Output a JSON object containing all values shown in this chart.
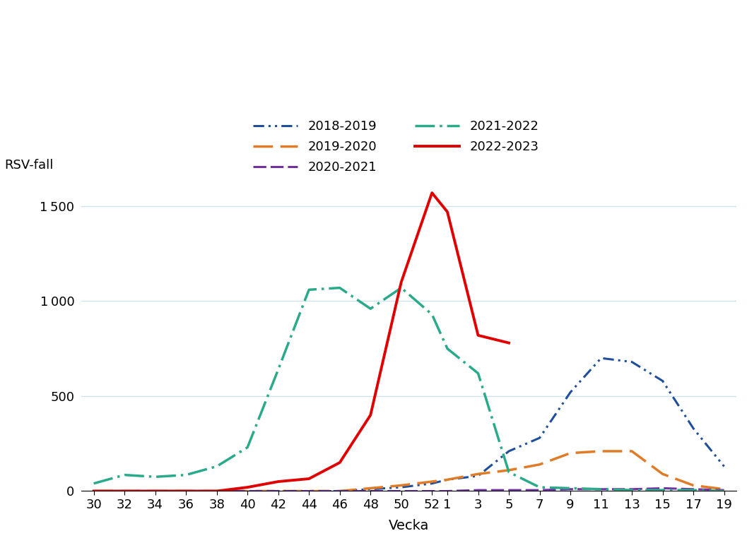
{
  "title": "",
  "ylabel": "RSV-fall",
  "xlabel": "Vecka",
  "background_color": "#ffffff",
  "grid_color": "#d0e4f0",
  "x_tick_labels": [
    "30",
    "32",
    "34",
    "36",
    "38",
    "40",
    "42",
    "44",
    "46",
    "48",
    "50",
    "52",
    "1",
    "3",
    "5",
    "7",
    "9",
    "11",
    "13",
    "15",
    "17",
    "19"
  ],
  "x_tick_positions": [
    0,
    2,
    4,
    6,
    8,
    10,
    12,
    14,
    16,
    18,
    20,
    22,
    23,
    25,
    27,
    29,
    31,
    33,
    35,
    37,
    39,
    41
  ],
  "ylim": [
    0,
    1650
  ],
  "yticks": [
    0,
    500,
    1000,
    1500
  ],
  "series": [
    {
      "label": "2018-2019",
      "color": "#1f4e9a",
      "linewidth": 2.2,
      "x": [
        0,
        2,
        4,
        6,
        8,
        10,
        12,
        14,
        16,
        18,
        20,
        22,
        23,
        25,
        27,
        29,
        31,
        33,
        35,
        37,
        39,
        41
      ],
      "y": [
        0,
        0,
        0,
        0,
        0,
        0,
        0,
        0,
        0,
        10,
        20,
        40,
        60,
        80,
        210,
        280,
        520,
        700,
        680,
        580,
        330,
        130
      ]
    },
    {
      "label": "2019-2020",
      "color": "#e07b28",
      "linewidth": 2.5,
      "x": [
        0,
        2,
        4,
        6,
        8,
        10,
        12,
        14,
        16,
        18,
        20,
        22,
        23,
        25,
        27,
        29,
        31,
        33,
        35,
        37,
        39,
        41
      ],
      "y": [
        0,
        0,
        0,
        0,
        0,
        0,
        0,
        0,
        0,
        15,
        30,
        50,
        60,
        90,
        110,
        140,
        200,
        210,
        210,
        90,
        30,
        10
      ]
    },
    {
      "label": "2020-2021",
      "color": "#7030a0",
      "linewidth": 2.2,
      "x": [
        0,
        2,
        4,
        6,
        8,
        10,
        12,
        14,
        16,
        18,
        20,
        22,
        23,
        25,
        27,
        29,
        31,
        33,
        35,
        37,
        39,
        41
      ],
      "y": [
        0,
        0,
        0,
        0,
        0,
        0,
        0,
        0,
        0,
        0,
        0,
        0,
        0,
        5,
        5,
        5,
        10,
        10,
        10,
        15,
        10,
        5
      ]
    },
    {
      "label": "2021-2022",
      "color": "#2aaa8a",
      "linewidth": 2.5,
      "x": [
        0,
        2,
        4,
        6,
        8,
        10,
        12,
        14,
        16,
        18,
        20,
        22,
        23,
        25,
        27,
        29,
        31,
        33,
        35,
        37,
        39,
        41
      ],
      "y": [
        40,
        85,
        75,
        85,
        130,
        230,
        640,
        1060,
        1070,
        960,
        1070,
        930,
        750,
        620,
        100,
        20,
        15,
        10,
        5,
        5,
        5,
        0
      ]
    },
    {
      "label": "2022-2023",
      "color": "#e00000",
      "linewidth": 2.8,
      "x": [
        0,
        2,
        4,
        6,
        8,
        10,
        12,
        14,
        16,
        18,
        20,
        22,
        23,
        25,
        27
      ],
      "y": [
        0,
        0,
        0,
        0,
        0,
        20,
        50,
        65,
        150,
        400,
        1100,
        1570,
        1470,
        820,
        780
      ]
    }
  ]
}
